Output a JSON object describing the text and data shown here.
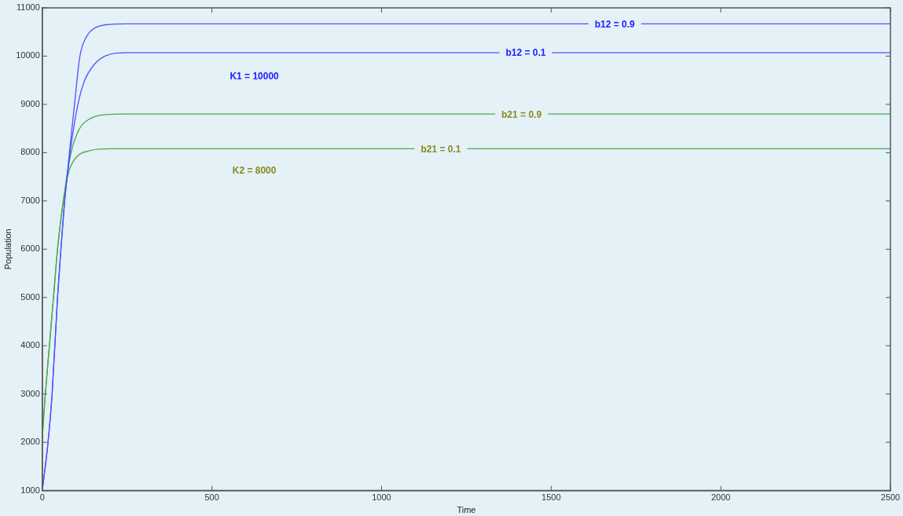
{
  "chart_data": {
    "type": "line",
    "xlabel": "Time",
    "ylabel": "Population",
    "xlim": [
      0,
      2500
    ],
    "xticks": [
      0,
      500,
      1000,
      1500,
      2000,
      2500
    ],
    "ylim": [
      1000,
      11000
    ],
    "yticks": [
      1000,
      2000,
      3000,
      4000,
      5000,
      6000,
      7000,
      8000,
      9000,
      10000,
      11000
    ],
    "grid": false,
    "legend": false,
    "marker": "none",
    "line_style": "solid",
    "annotations": [
      "K1 = 10000",
      "K2 = 8000"
    ],
    "series": [
      {
        "name": "b12 = 0.9",
        "color": "#5050ff",
        "x": [
          0,
          17,
          29,
          45,
          55,
          66,
          80,
          95,
          111,
          130,
          150,
          187,
          250,
          2500
        ],
        "values": [
          1000,
          2000,
          3000,
          5000,
          6000,
          7000,
          8000,
          9000,
          10000,
          10400,
          10560,
          10650,
          10670,
          10670
        ]
      },
      {
        "name": "b12 = 0.1",
        "color": "#5050ff",
        "x": [
          0,
          17,
          29,
          45,
          55,
          66,
          82,
          105,
          125,
          150,
          185,
          250,
          2500
        ],
        "values": [
          1000,
          2000,
          3000,
          5000,
          6000,
          7000,
          8000,
          9000,
          9500,
          9800,
          10000,
          10070,
          10070
        ]
      },
      {
        "name": "b21 = 0.9",
        "color": "#4caa4c",
        "x": [
          0,
          9,
          21,
          33,
          45,
          62,
          85,
          110,
          140,
          187,
          250,
          2500
        ],
        "values": [
          2100,
          3000,
          4000,
          5000,
          6000,
          7000,
          8000,
          8500,
          8700,
          8790,
          8800,
          8800
        ]
      },
      {
        "name": "b21 = 0.1",
        "color": "#4caa4c",
        "x": [
          0,
          9,
          21,
          33,
          45,
          62,
          78,
          100,
          140,
          200,
          2500
        ],
        "values": [
          2100,
          3000,
          4000,
          5000,
          6000,
          7000,
          7600,
          7900,
          8040,
          8080,
          8080
        ]
      }
    ]
  }
}
